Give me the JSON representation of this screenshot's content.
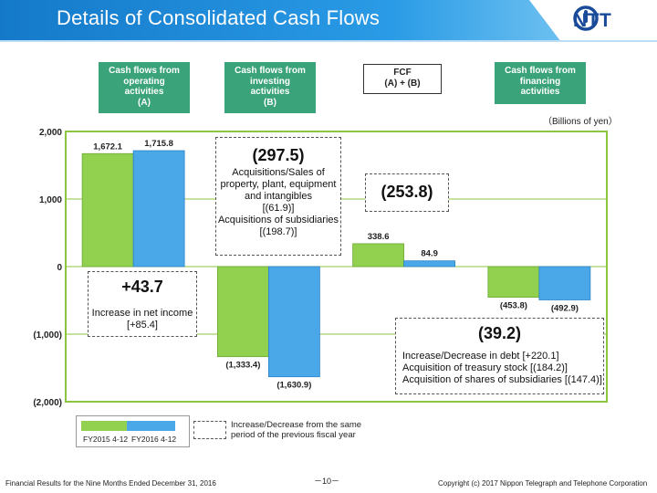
{
  "header": {
    "title": "Details of Consolidated Cash Flows",
    "logo_text": "NTT"
  },
  "categories": {
    "operating": {
      "line1": "Cash flows from",
      "line2": "operating",
      "line3": "activities",
      "line4": "(A)"
    },
    "investing": {
      "line1": "Cash flows from",
      "line2": "investing",
      "line3": "activities",
      "line4": "(B)"
    },
    "fcf": {
      "line1": "FCF",
      "line2": "(A) + (B)"
    },
    "financing": {
      "line1": "Cash flows from",
      "line2": "financing",
      "line3": "activities"
    }
  },
  "unit_label": "（Billions of yen）",
  "annotations": {
    "operating": {
      "value": "+43.7",
      "line1": "Increase in net income",
      "line2": "[+85.4]"
    },
    "investing": {
      "value": "(297.5)",
      "line1": "Acquisitions/Sales of",
      "line2": "property, plant, equipment",
      "line3": "and intangibles",
      "line4": "[(61.9)]",
      "line5": "Acquisitions of subsidiaries",
      "line6": "[(198.7)]"
    },
    "fcf": {
      "value": "(253.8)"
    },
    "financing": {
      "value": "(39.2)",
      "line1": "Increase/Decrease in debt [+220.1]",
      "line2": "Acquisition of treasury stock [(184.2)]",
      "line3": "Acquisition of shares of subsidiaries [(147.4)]"
    }
  },
  "legend": {
    "series1": "FY2015 4-12",
    "series2": "FY2016 4-12",
    "note_line1": "Increase/Decrease  from the same",
    "note_line2": "period of the previous  fiscal year"
  },
  "footer": {
    "left": "Financial Results for the Nine Months Ended December 31, 2016",
    "page": "－10－",
    "right": "Copyright (c) 2017  Nippon Telegraph and Telephone Corporation"
  },
  "colors": {
    "series1": "#92d050",
    "series2": "#4ba8e8",
    "header_blue": "#1f8fdc",
    "category_green": "#3aa37a",
    "plot_border": "#8cc63f"
  },
  "chart_data": {
    "type": "bar",
    "categories": [
      "Cash flows from operating activities (A)",
      "Cash flows from investing activities (B)",
      "FCF (A) + (B)",
      "Cash flows from financing activities"
    ],
    "series": [
      {
        "name": "FY2015 4-12",
        "values": [
          1672.1,
          -1333.4,
          338.6,
          -453.8
        ],
        "labels": [
          "1,672.1",
          "(1,333.4)",
          "338.6",
          "(453.8)"
        ]
      },
      {
        "name": "FY2016 4-12",
        "values": [
          1715.8,
          -1630.9,
          84.9,
          -492.9
        ],
        "labels": [
          "1,715.8",
          "(1,630.9)",
          "84.9",
          "(492.9)"
        ]
      }
    ],
    "ylim": [
      -2000,
      2000
    ],
    "yticks": [
      2000,
      1000,
      0,
      -1000,
      -2000
    ],
    "ytick_labels": [
      "2,000",
      "1,000",
      "0",
      "(1,000)",
      "(2,000)"
    ],
    "ylabel": "",
    "xlabel": ""
  }
}
